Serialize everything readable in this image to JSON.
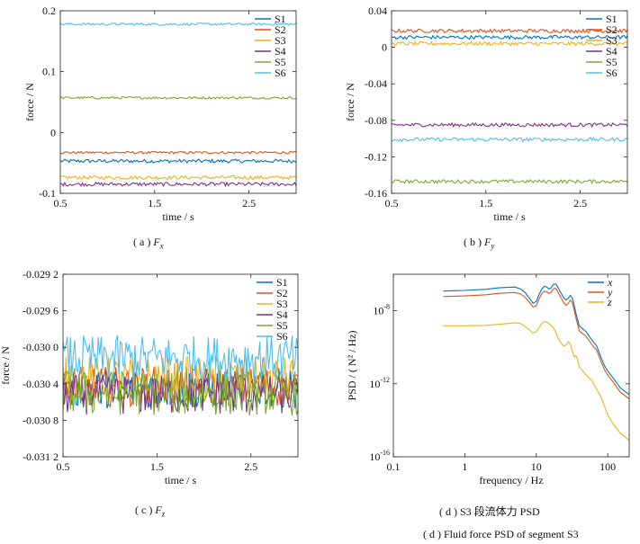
{
  "figure": {
    "captions": {
      "a": {
        "prefix": "( a )",
        "sym": "F",
        "sub": "x"
      },
      "b": {
        "prefix": "( b )",
        "sym": "F",
        "sub": "y"
      },
      "c": {
        "prefix": "( c )",
        "sym": "F",
        "sub": "z"
      },
      "d_cn": "( d )  S3 段流体力 PSD",
      "d_en": "( d )  Fluid force PSD of segment S3"
    }
  },
  "chart_data": [
    {
      "id": "a",
      "type": "line",
      "xlabel": "time / s",
      "ylabel": "force / N",
      "xlim": [
        0.5,
        3.0
      ],
      "ylim": [
        -0.1,
        0.2
      ],
      "xticks": [
        {
          "v": 0.5,
          "label": "0.5"
        },
        {
          "v": 1.5,
          "label": "1.5"
        },
        {
          "v": 2.5,
          "label": "2.5"
        }
      ],
      "yticks": [
        {
          "v": -0.1,
          "label": "-0.1"
        },
        {
          "v": 0,
          "label": "0"
        },
        {
          "v": 0.1,
          "label": "0.1"
        },
        {
          "v": 0.2,
          "label": "0.2"
        }
      ],
      "legend_position": "top-right",
      "colors": [
        "#0072BD",
        "#D95319",
        "#EDB120",
        "#7E2F8E",
        "#77AC30",
        "#4DBEEE"
      ],
      "series": [
        {
          "name": "S1",
          "mean": -0.047,
          "amplitude": 0.003
        },
        {
          "name": "S2",
          "mean": -0.033,
          "amplitude": 0.002
        },
        {
          "name": "S3",
          "mean": -0.074,
          "amplitude": 0.003
        },
        {
          "name": "S4",
          "mean": -0.085,
          "amplitude": 0.003
        },
        {
          "name": "S5",
          "mean": 0.057,
          "amplitude": 0.002
        },
        {
          "name": "S6",
          "mean": 0.178,
          "amplitude": 0.002
        }
      ]
    },
    {
      "id": "b",
      "type": "line",
      "xlabel": "time / s",
      "ylabel": "force / N",
      "xlim": [
        0.5,
        3.0
      ],
      "ylim": [
        -0.16,
        0.04
      ],
      "xticks": [
        {
          "v": 0.5,
          "label": "0.5"
        },
        {
          "v": 1.5,
          "label": "1.5"
        },
        {
          "v": 2.5,
          "label": "2.5"
        }
      ],
      "yticks": [
        {
          "v": -0.16,
          "label": "-0.16"
        },
        {
          "v": -0.12,
          "label": "-0.12"
        },
        {
          "v": -0.08,
          "label": "-0.08"
        },
        {
          "v": -0.04,
          "label": "-0.04"
        },
        {
          "v": 0,
          "label": "0"
        },
        {
          "v": 0.04,
          "label": "0.04"
        }
      ],
      "legend_position": "top-right",
      "colors": [
        "#0072BD",
        "#D95319",
        "#EDB120",
        "#7E2F8E",
        "#77AC30",
        "#4DBEEE"
      ],
      "series": [
        {
          "name": "S1",
          "mean": 0.011,
          "amplitude": 0.002
        },
        {
          "name": "S2",
          "mean": 0.018,
          "amplitude": 0.002
        },
        {
          "name": "S3",
          "mean": 0.004,
          "amplitude": 0.002
        },
        {
          "name": "S4",
          "mean": -0.085,
          "amplitude": 0.002
        },
        {
          "name": "S5",
          "mean": -0.147,
          "amplitude": 0.002
        },
        {
          "name": "S6",
          "mean": -0.101,
          "amplitude": 0.002
        }
      ]
    },
    {
      "id": "c",
      "type": "line",
      "xlabel": "time / s",
      "ylabel": "force / N",
      "xlim": [
        0.5,
        3.0
      ],
      "ylim": [
        -0.0312,
        -0.0292
      ],
      "xticks": [
        {
          "v": 0.5,
          "label": "0.5"
        },
        {
          "v": 1.5,
          "label": "1.5"
        },
        {
          "v": 2.5,
          "label": "2.5"
        }
      ],
      "yticks": [
        {
          "v": -0.0312,
          "label": "-0.031 2"
        },
        {
          "v": -0.0308,
          "label": "-0.030 8"
        },
        {
          "v": -0.0304,
          "label": "-0.030 4"
        },
        {
          "v": -0.03,
          "label": "-0.030 0"
        },
        {
          "v": -0.0296,
          "label": "-0.029 6"
        },
        {
          "v": -0.0292,
          "label": "-0.029 2"
        }
      ],
      "legend_position": "top-right",
      "colors": [
        "#0072BD",
        "#D95319",
        "#EDB120",
        "#7E2F8E",
        "#77AC30",
        "#4DBEEE"
      ],
      "series": [
        {
          "name": "S1",
          "mean": -0.03045,
          "amplitude": 0.00022
        },
        {
          "name": "S2",
          "mean": -0.03043,
          "amplitude": 0.00022
        },
        {
          "name": "S3",
          "mean": -0.03035,
          "amplitude": 0.00025
        },
        {
          "name": "S4",
          "mean": -0.03052,
          "amplitude": 0.00022
        },
        {
          "name": "S5",
          "mean": -0.0305,
          "amplitude": 0.00025
        },
        {
          "name": "S6",
          "mean": -0.03012,
          "amplitude": 0.00025
        }
      ]
    },
    {
      "id": "d",
      "type": "line",
      "xlabel": "frequency / Hz",
      "ylabel": "PSD / ( N² / Hz)",
      "xscale": "log",
      "yscale": "log",
      "xlim": [
        0.1,
        200
      ],
      "ylim": [
        1e-16,
        1e-06
      ],
      "xticks": [
        {
          "v": 0.1,
          "label": "0.1"
        },
        {
          "v": 1,
          "label": "1"
        },
        {
          "v": 10,
          "label": "10"
        },
        {
          "v": 100,
          "label": "100"
        }
      ],
      "yticks": [
        {
          "v": 1e-16,
          "base": "10",
          "exp": "-16"
        },
        {
          "v": 1e-12,
          "base": "10",
          "exp": "-12"
        },
        {
          "v": 1e-08,
          "base": "10",
          "exp": "-8"
        }
      ],
      "legend_position": "top-right",
      "colors": [
        "#0072BD",
        "#D95319",
        "#EDB120"
      ],
      "series": [
        {
          "name": "x",
          "x": [
            0.5,
            1,
            2,
            3,
            5,
            6,
            7,
            8,
            9,
            10,
            11,
            12,
            13,
            14,
            15,
            16,
            17,
            18,
            19,
            20,
            22,
            24,
            26,
            28,
            30,
            32,
            34,
            36,
            38,
            40,
            45,
            50,
            60,
            70,
            80,
            90,
            100,
            120,
            150,
            200
          ],
          "y": [
            1.2e-07,
            1.3e-07,
            1.5e-07,
            1.8e-07,
            2e-07,
            1.6e-07,
            1e-07,
            5e-08,
            2.6e-08,
            3.2e-08,
            8e-08,
            1.6e-07,
            2.2e-07,
            2e-07,
            1.6e-07,
            1.7e-07,
            2.5e-07,
            3e-07,
            2.8e-07,
            2e-07,
            1e-07,
            5.5e-08,
            3.8e-08,
            4.8e-08,
            7e-08,
            5e-08,
            2e-08,
            7e-09,
            3e-09,
            1.5e-09,
            1e-09,
            7e-10,
            2.5e-10,
            1.2e-10,
            3e-11,
            1e-11,
            5e-12,
            2e-12,
            6e-13,
            2.5e-13
          ]
        },
        {
          "name": "y",
          "x": [
            0.5,
            1,
            2,
            3,
            5,
            6,
            7,
            8,
            9,
            10,
            11,
            12,
            13,
            14,
            15,
            16,
            17,
            18,
            19,
            20,
            22,
            24,
            26,
            28,
            30,
            32,
            34,
            36,
            38,
            40,
            45,
            50,
            60,
            70,
            80,
            90,
            100,
            120,
            150,
            200
          ],
          "y": [
            6e-08,
            6.5e-08,
            7.5e-08,
            9e-08,
            1e-07,
            8.5e-08,
            5.5e-08,
            3e-08,
            1.6e-08,
            1.9e-08,
            4.5e-08,
            9e-08,
            1.2e-07,
            1.1e-07,
            9e-08,
            9.5e-08,
            1.4e-07,
            1.7e-07,
            1.6e-07,
            1.1e-07,
            5.5e-08,
            3e-08,
            2e-08,
            2.5e-08,
            3.8e-08,
            2.8e-08,
            1.1e-08,
            4e-09,
            1.7e-09,
            8e-10,
            5.5e-10,
            4e-10,
            1.4e-10,
            7e-11,
            1.8e-11,
            6e-12,
            3e-12,
            1.2e-12,
            3.5e-13,
            1.5e-13
          ]
        },
        {
          "name": "z",
          "x": [
            0.5,
            1,
            2,
            3,
            5,
            6,
            7,
            8,
            9,
            10,
            11,
            12,
            13,
            14,
            15,
            16,
            17,
            18,
            19,
            20,
            22,
            24,
            26,
            28,
            30,
            32,
            34,
            36,
            38,
            40,
            45,
            50,
            60,
            70,
            80,
            90,
            100,
            120,
            150,
            200
          ],
          "y": [
            1.5e-09,
            1.5e-09,
            1.6e-09,
            1.8e-09,
            2.2e-09,
            2e-09,
            1.4e-09,
            9e-10,
            6e-10,
            7e-10,
            1.2e-09,
            2e-09,
            2.6e-09,
            2.4e-09,
            2e-09,
            1.6e-09,
            1.3e-09,
            9e-10,
            6e-10,
            3.5e-10,
            1.8e-10,
            1.2e-10,
            1.3e-10,
            2e-10,
            1.5e-10,
            6e-11,
            3e-11,
            3.5e-11,
            2e-11,
            8e-12,
            5e-12,
            3e-12,
            1.5e-12,
            5e-13,
            2e-13,
            6e-14,
            2e-14,
            6e-15,
            2e-15,
            8e-16
          ]
        }
      ]
    }
  ]
}
